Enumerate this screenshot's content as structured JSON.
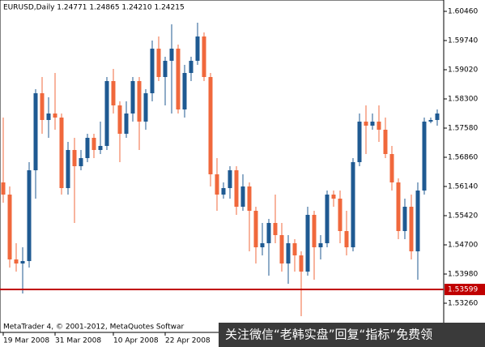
{
  "chart_data": {
    "type": "candlestick",
    "title": "EURUSD,Daily  1.24771 1.24865 1.24210 1.24215",
    "footer": "MetaTrader 4, © 2001-2012, MetaQuotes Softwar",
    "watermark": "关注微信“老韩实盘”回复“指标”免费领",
    "categories": [
      "19 Mar 2008",
      null,
      null,
      null,
      null,
      null,
      null,
      null,
      "31 Mar 2008",
      null,
      null,
      null,
      null,
      null,
      null,
      null,
      null,
      "10 Apr 2008",
      null,
      null,
      null,
      null,
      null,
      null,
      null,
      "22 Apr 2008",
      null,
      null,
      null,
      null,
      null,
      null,
      null,
      null,
      null,
      null,
      null,
      null,
      null,
      null,
      null,
      null,
      null,
      null,
      null,
      null,
      null,
      null,
      null,
      null,
      null,
      null,
      null,
      null,
      null,
      null,
      null,
      null,
      null,
      null,
      null,
      null,
      null,
      null,
      null,
      null,
      null,
      null
    ],
    "open": [
      1.5624,
      1.5594,
      1.5434,
      1.5424,
      1.543,
      1.5654,
      1.5844,
      1.5778,
      1.5794,
      1.5784,
      1.561,
      1.5704,
      1.5664,
      1.5684,
      1.5734,
      1.5704,
      1.5714,
      1.5874,
      1.5814,
      1.5744,
      1.5794,
      1.5874,
      1.5774,
      1.5844,
      1.5954,
      1.5884,
      1.5924,
      1.5954,
      1.5804,
      1.5894,
      1.5924,
      1.5984,
      1.5884,
      1.5644,
      1.5594,
      1.561,
      1.5654,
      1.5564,
      1.5614,
      1.5554,
      1.5464,
      1.5474,
      1.5524,
      1.5494,
      1.5424,
      1.5474,
      1.5444,
      1.5404,
      1.5544,
      1.5464,
      1.5474,
      1.5594,
      1.5584,
      1.5504,
      1.5464,
      1.5674,
      1.5774,
      1.5764,
      1.5774,
      1.5754,
      1.5694,
      1.5624,
      1.5504,
      1.5564,
      1.5454,
      1.5604,
      1.5774,
      1.5778
    ],
    "high": [
      1.5784,
      1.5614,
      1.5474,
      1.5464,
      1.5674,
      1.5854,
      1.5884,
      1.5834,
      1.5894,
      1.5794,
      1.5724,
      1.5734,
      1.5704,
      1.5744,
      1.5744,
      1.5774,
      1.5884,
      1.5904,
      1.5824,
      1.5824,
      1.5884,
      1.5884,
      1.5854,
      1.5974,
      1.5984,
      1.5934,
      1.6014,
      1.5964,
      1.5914,
      1.5934,
      1.6018,
      1.5994,
      1.5894,
      1.5684,
      1.5624,
      1.5664,
      1.5664,
      1.5644,
      1.5624,
      1.5564,
      1.5524,
      1.5534,
      1.5594,
      1.5524,
      1.5494,
      1.5484,
      1.5454,
      1.5564,
      1.5554,
      1.5494,
      1.5604,
      1.5604,
      1.5604,
      1.5554,
      1.5684,
      1.5794,
      1.5814,
      1.5794,
      1.5814,
      1.5784,
      1.5714,
      1.5634,
      1.5584,
      1.5594,
      1.5624,
      1.5784,
      1.5784,
      1.5804
    ],
    "low": [
      1.5574,
      1.5414,
      1.5404,
      1.535,
      1.5414,
      1.5584,
      1.5744,
      1.5734,
      1.5754,
      1.5594,
      1.5594,
      1.5524,
      1.5654,
      1.5674,
      1.5684,
      1.5694,
      1.5704,
      1.5794,
      1.5674,
      1.5734,
      1.5774,
      1.5704,
      1.5754,
      1.5824,
      1.5874,
      1.5814,
      1.5794,
      1.5794,
      1.5784,
      1.5874,
      1.5914,
      1.5874,
      1.5614,
      1.5554,
      1.5584,
      1.5584,
      1.5544,
      1.5554,
      1.5454,
      1.5424,
      1.5444,
      1.5394,
      1.5474,
      1.5404,
      1.5374,
      1.5404,
      1.5294,
      1.5394,
      1.5384,
      1.5434,
      1.5464,
      1.5564,
      1.5474,
      1.5444,
      1.5454,
      1.5664,
      1.5694,
      1.5754,
      1.5724,
      1.5684,
      1.5604,
      1.5484,
      1.5484,
      1.5434,
      1.5384,
      1.5594,
      1.577,
      1.5764
    ],
    "close": [
      1.5594,
      1.5434,
      1.5424,
      1.543,
      1.5654,
      1.5844,
      1.5778,
      1.5794,
      1.5784,
      1.561,
      1.5704,
      1.5664,
      1.5684,
      1.5734,
      1.5704,
      1.5714,
      1.5874,
      1.5814,
      1.5744,
      1.5794,
      1.5874,
      1.5774,
      1.5844,
      1.5954,
      1.5884,
      1.5924,
      1.5954,
      1.5804,
      1.5894,
      1.5924,
      1.5984,
      1.5884,
      1.5644,
      1.5594,
      1.561,
      1.5654,
      1.5564,
      1.5614,
      1.5554,
      1.5464,
      1.5474,
      1.5524,
      1.5494,
      1.5424,
      1.5474,
      1.5444,
      1.5404,
      1.5544,
      1.5464,
      1.5474,
      1.5594,
      1.5584,
      1.5504,
      1.5464,
      1.5674,
      1.5774,
      1.5764,
      1.5774,
      1.5754,
      1.5694,
      1.5624,
      1.5504,
      1.5564,
      1.5454,
      1.5604,
      1.5774,
      1.5778,
      1.5794
    ],
    "up_color": "#1f5a92",
    "down_color": "#f0683c",
    "hline": 1.53599,
    "hline_color": "#c00000",
    "ylim": [
      1.5254,
      1.6074
    ],
    "yticks": [
      {
        "value": 1.6046,
        "label": "1.60460"
      },
      {
        "value": 1.5974,
        "label": "1.59740"
      },
      {
        "value": 1.5902,
        "label": "1.59020"
      },
      {
        "value": 1.583,
        "label": "1.58300"
      },
      {
        "value": 1.5758,
        "label": "1.57580"
      },
      {
        "value": 1.5686,
        "label": "1.56860"
      },
      {
        "value": 1.5614,
        "label": "1.56140"
      },
      {
        "value": 1.5542,
        "label": "1.55420"
      },
      {
        "value": 1.547,
        "label": "1.54700"
      },
      {
        "value": 1.5398,
        "label": "1.53980"
      },
      {
        "value": 1.5326,
        "label": "1.53260"
      }
    ]
  }
}
